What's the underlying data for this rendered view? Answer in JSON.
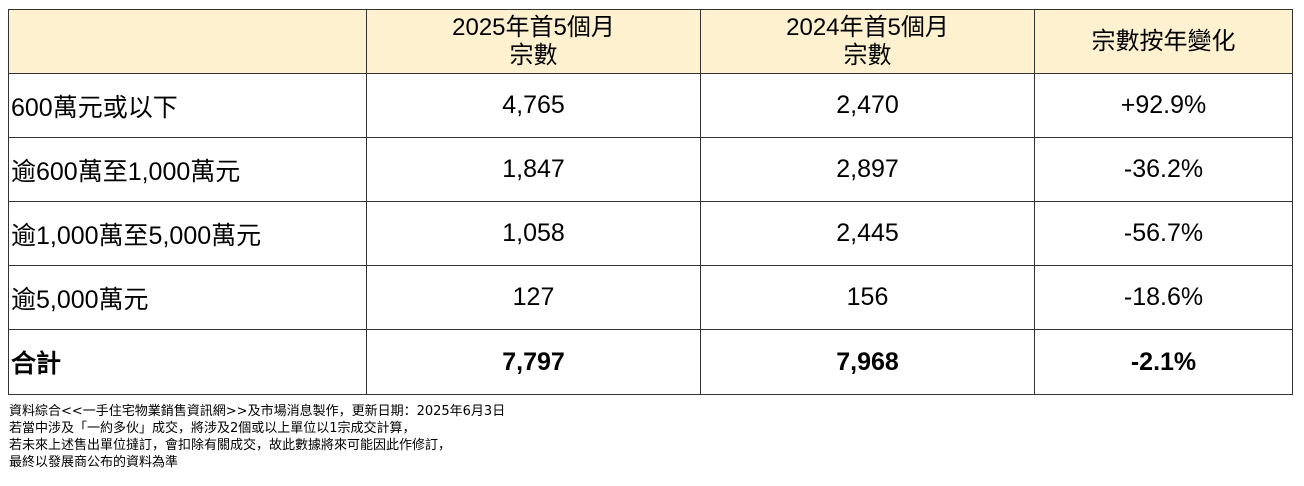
{
  "chart_data": {
    "type": "table",
    "columns": [
      "",
      "2025年首5個月宗數",
      "2024年首5個月宗數",
      "宗數按年變化"
    ],
    "header": {
      "col1": "",
      "col2_line1": "2025年首5個月",
      "col2_line2": "宗數",
      "col3_line1": "2024年首5個月",
      "col3_line2": "宗數",
      "col4": "宗數按年變化"
    },
    "rows": [
      {
        "label": "600萬元或以下",
        "y2025": "4,765",
        "y2024": "2,470",
        "change": "+92.9%"
      },
      {
        "label": "逾600萬至1,000萬元",
        "y2025": "1,847",
        "y2024": "2,897",
        "change": "-36.2%"
      },
      {
        "label": "逾1,000萬至5,000萬元",
        "y2025": "1,058",
        "y2024": "2,445",
        "change": "-56.7%"
      },
      {
        "label": "逾5,000萬元",
        "y2025": "127",
        "y2024": "156",
        "change": "-18.6%"
      }
    ],
    "total": {
      "label": "合計",
      "y2025": "7,797",
      "y2024": "7,968",
      "change": "-2.1%"
    }
  },
  "notes": [
    "資料綜合<<一手住宅物業銷售資訊網>>及市場消息製作，更新日期：2025年6月3日",
    "若當中涉及「一約多伙」成交，將涉及2個或以上單位以1宗成交計算，",
    "若未來上述售出單位撻訂，會扣除有關成交，故此數據將來可能因此作修訂，",
    "最終以發展商公布的資料為準"
  ],
  "colors": {
    "header_background": "#fdf1cf",
    "border": "#333333"
  }
}
